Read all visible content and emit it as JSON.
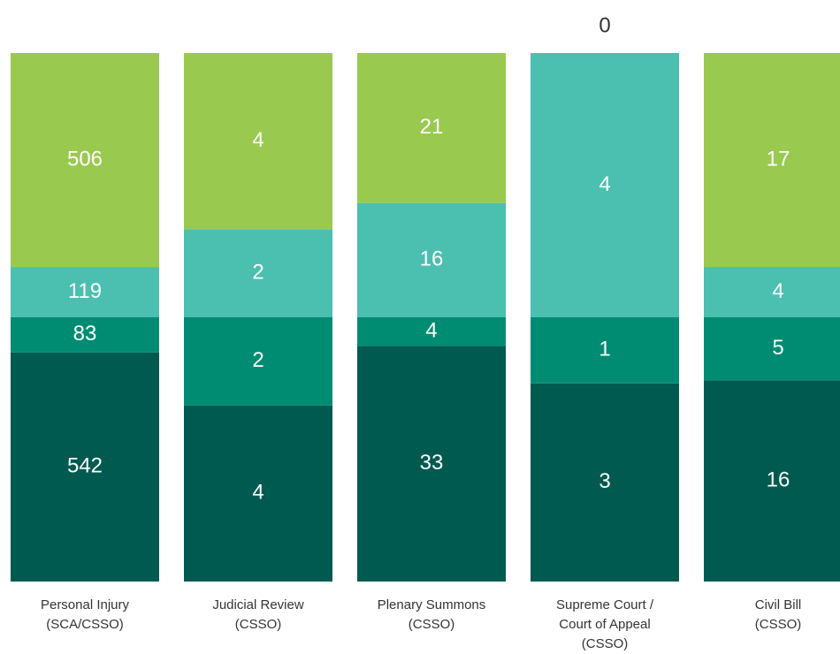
{
  "chart_data": {
    "type": "stacked_percent_bar",
    "categories": [
      "Personal Injury\n(SCA/CSSO)",
      "Judicial Review\n(CSSO)",
      "Plenary Summons\n(CSSO)",
      "Supreme Court /\nCourt of Appeal\n(CSSO)",
      "Civil Bill\n(CSSO)"
    ],
    "series": [
      {
        "color": "#005a50",
        "values": [
          542,
          4,
          33,
          3,
          16
        ]
      },
      {
        "color": "#008c72",
        "values": [
          83,
          2,
          4,
          1,
          5
        ]
      },
      {
        "color": "#4bbfb0",
        "values": [
          119,
          2,
          16,
          4,
          4
        ]
      },
      {
        "color": "#99c94f",
        "values": [
          506,
          4,
          21,
          0,
          17
        ]
      }
    ]
  }
}
